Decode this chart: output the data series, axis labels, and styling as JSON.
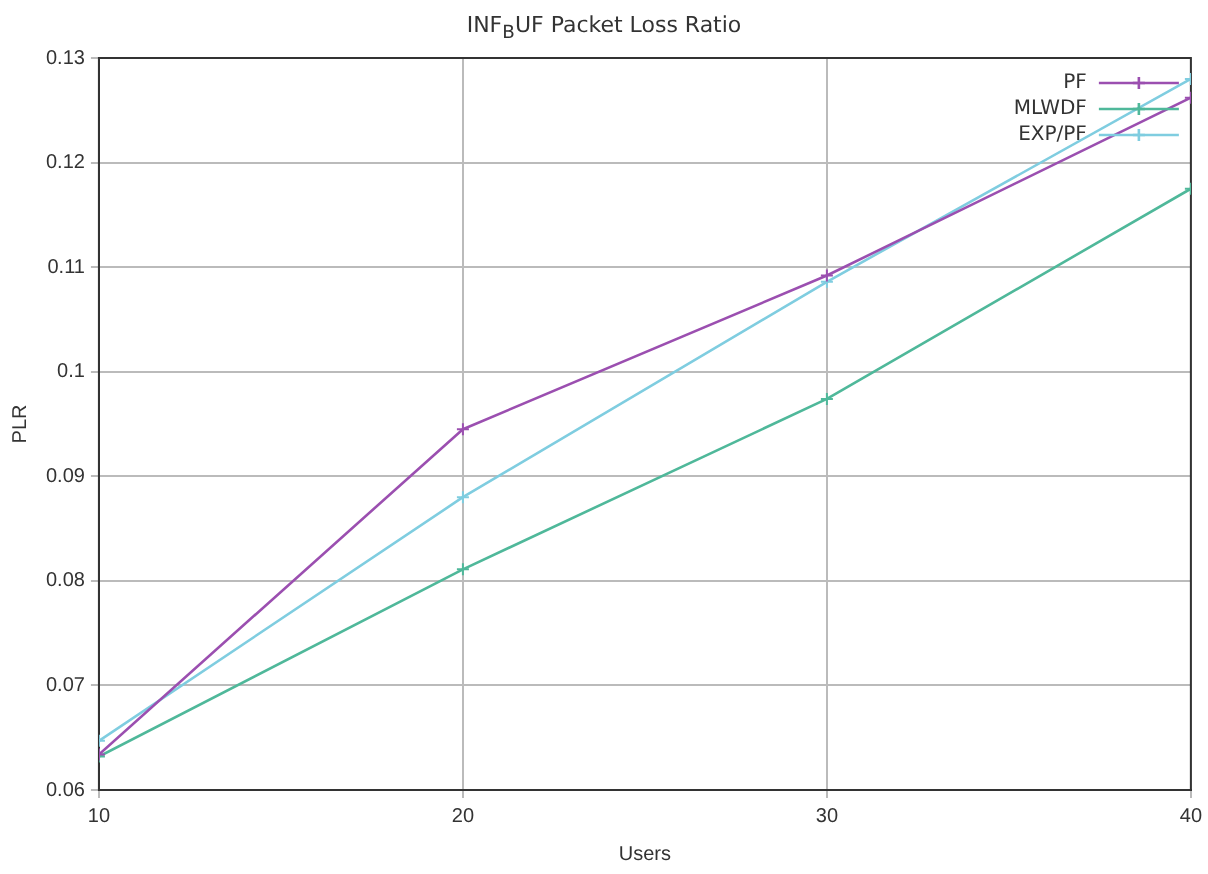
{
  "chart_data": {
    "type": "line",
    "title": "INF$_{B}$UF Packet Loss Ratio",
    "xlabel": "Users",
    "ylabel": "PLR",
    "x": [
      10,
      20,
      30,
      40
    ],
    "series": [
      {
        "name": "PF",
        "color": "#9b4fb0",
        "values": [
          0.0634,
          0.0945,
          0.1092,
          0.1262
        ]
      },
      {
        "name": "MLWDF",
        "color": "#4fb89a",
        "values": [
          0.0632,
          0.0811,
          0.0974,
          0.1175
        ]
      },
      {
        "name": "EXP/PF",
        "color": "#7fcde0",
        "values": [
          0.0647,
          0.088,
          0.1086,
          0.128
        ]
      }
    ],
    "xlim": [
      10,
      40
    ],
    "xticks": [
      10,
      20,
      30,
      40
    ],
    "ylim": [
      0.06,
      0.13
    ],
    "yticks": [
      0.06,
      0.07,
      0.08,
      0.09,
      0.1,
      0.11,
      0.12,
      0.13
    ],
    "grid": true,
    "legend": "top right",
    "marker": "cross",
    "line_style": "solid"
  }
}
